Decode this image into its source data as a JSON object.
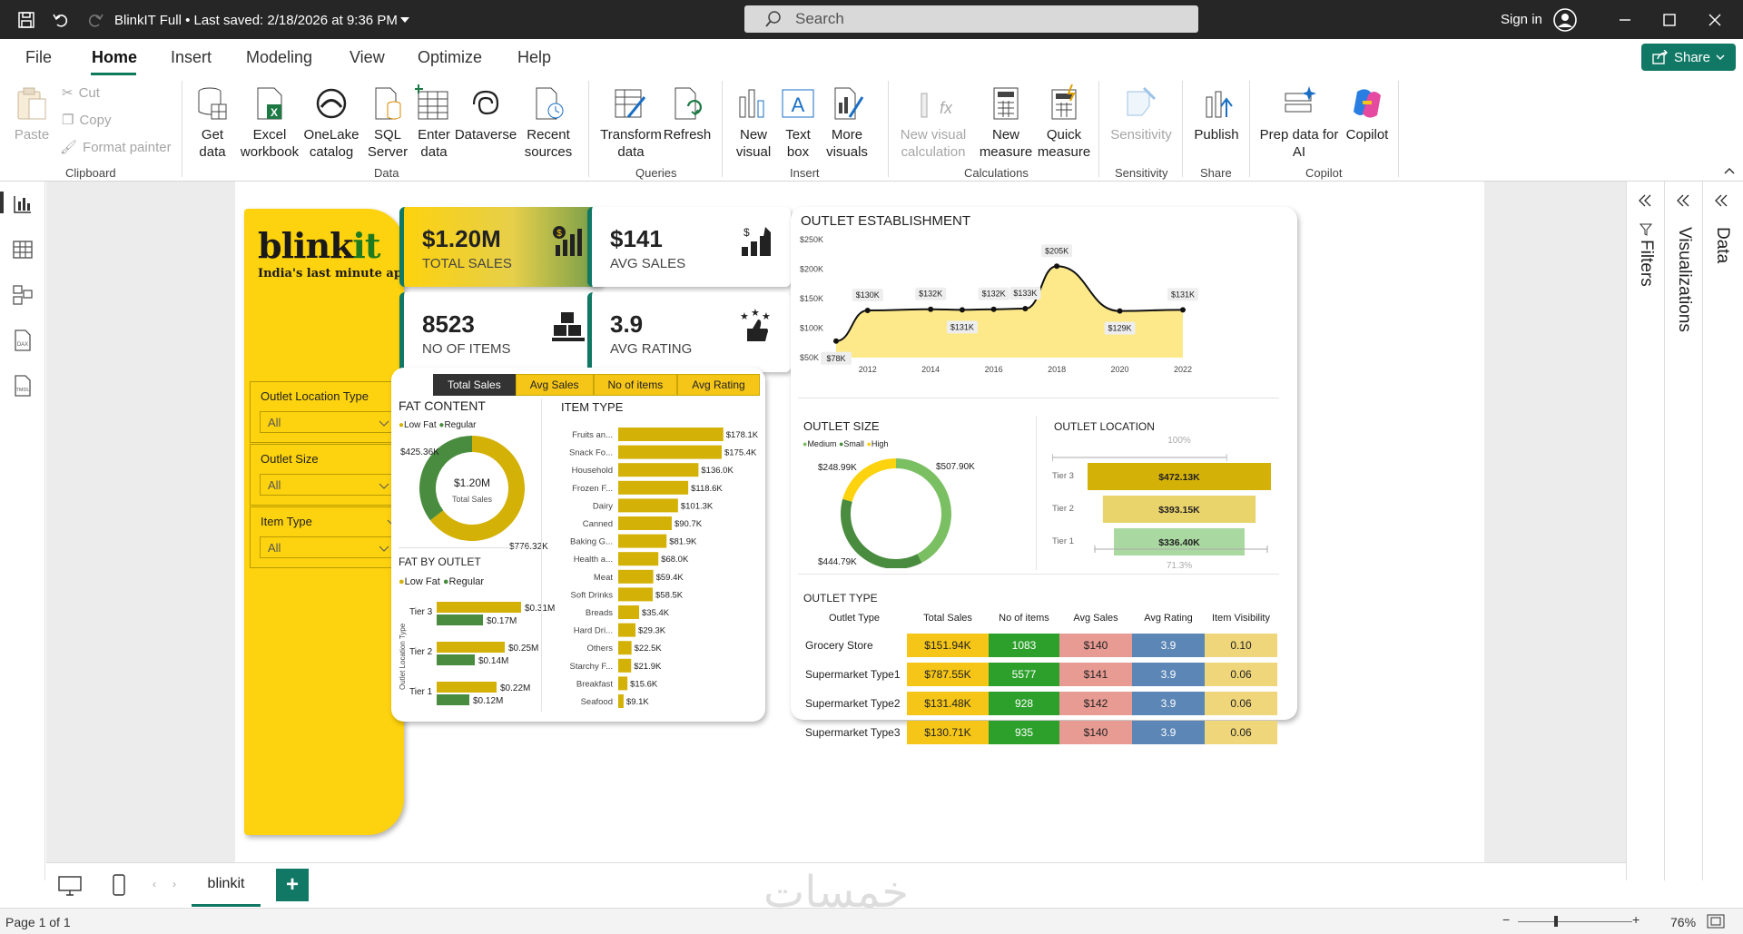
{
  "titlebar": {
    "doc_title": "BlinkIT Full  •  Last saved: 2/18/2026 at 9:36 PM",
    "search_placeholder": "Search",
    "signin": "Sign in"
  },
  "menu": {
    "tabs": [
      "File",
      "Home",
      "Insert",
      "Modeling",
      "View",
      "Optimize",
      "Help"
    ],
    "share": "Share"
  },
  "ribbon": {
    "clipboard": {
      "paste": "Paste",
      "cut": "Cut",
      "copy": "Copy",
      "format_painter": "Format painter",
      "group": "Clipboard"
    },
    "data": {
      "get_data": "Get data",
      "excel": "Excel workbook",
      "onelake": "OneLake catalog",
      "sql": "SQL Server",
      "enter": "Enter data",
      "dataverse": "Dataverse",
      "recent": "Recent sources",
      "group": "Data"
    },
    "queries": {
      "transform": "Transform data",
      "refresh": "Refresh",
      "group": "Queries"
    },
    "insert": {
      "new_visual": "New visual",
      "text_box": "Text box",
      "more": "More visuals",
      "group": "Insert"
    },
    "calc": {
      "new_calc": "New visual calculation",
      "new_measure": "New measure",
      "quick": "Quick measure",
      "group": "Calculations"
    },
    "sensitivity": {
      "label": "Sensitivity",
      "group": "Sensitivity"
    },
    "share": {
      "publish": "Publish",
      "group": "Share"
    },
    "copilot": {
      "prep": "Prep data for AI",
      "copilot": "Copilot",
      "group": "Copilot"
    }
  },
  "sidepanes": {
    "filters": "Filters",
    "visualizations": "Visualizations",
    "data": "Data"
  },
  "report": {
    "brand": {
      "name_black": "blink",
      "name_green": "it",
      "tagline": "India's last minute app"
    },
    "slicers": [
      {
        "title": "Outlet Location Type",
        "value": "All"
      },
      {
        "title": "Outlet Size",
        "value": "All"
      },
      {
        "title": "Item Type",
        "value": "All"
      }
    ],
    "kpis": [
      {
        "value": "$1.20M",
        "label": "TOTAL SALES"
      },
      {
        "value": "$141",
        "label": "AVG SALES"
      },
      {
        "value": "8523",
        "label": "NO OF ITEMS"
      },
      {
        "value": "3.9",
        "label": "AVG RATING"
      }
    ],
    "measure_tabs": [
      "Total Sales",
      "Avg Sales",
      "No of items",
      "Avg Rating"
    ],
    "fat_content": {
      "title": "FAT CONTENT",
      "legend": [
        "Low Fat",
        "Regular"
      ],
      "center_value": "$1.20M",
      "center_label": "Total Sales"
    },
    "fat_by_outlet": {
      "title": "FAT BY OUTLET",
      "legend": [
        "Low Fat",
        "Regular"
      ],
      "axis_label": "Outlet Location Type"
    },
    "item_type": {
      "title": "ITEM TYPE"
    },
    "outlet_establishment": {
      "title": "OUTLET ESTABLISHMENT"
    },
    "outlet_size": {
      "title": "OUTLET SIZE",
      "legend": [
        "Medium",
        "Small",
        "High"
      ]
    },
    "outlet_location": {
      "title": "OUTLET LOCATION",
      "top_pct": "100%",
      "bottom_pct": "71.3%"
    },
    "outlet_type": {
      "title": "OUTLET TYPE",
      "columns": [
        "Outlet Type",
        "Total Sales",
        "No of items",
        "Avg Sales",
        "Avg Rating",
        "Item Visibility"
      ],
      "rows": [
        [
          "Grocery Store",
          "$151.94K",
          "1083",
          "$140",
          "3.9",
          "0.10"
        ],
        [
          "Supermarket Type1",
          "$787.55K",
          "5577",
          "$141",
          "3.9",
          "0.06"
        ],
        [
          "Supermarket Type2",
          "$131.48K",
          "928",
          "$142",
          "3.9",
          "0.06"
        ],
        [
          "Supermarket Type3",
          "$130.71K",
          "935",
          "$140",
          "3.9",
          "0.06"
        ]
      ]
    }
  },
  "pagebar": {
    "page_tab": "blinkit",
    "watermark": "خمسات"
  },
  "statusbar": {
    "page": "Page 1 of 1",
    "zoom": "76%"
  },
  "colors": {
    "gold": "#d4b106",
    "yellow": "#fdd20e",
    "green": "#117865",
    "darkgreen": "#4a8c3f",
    "lightgreen": "#7bbf63"
  },
  "chart_data": [
    {
      "type": "donut",
      "title": "FAT CONTENT",
      "categories": [
        "Low Fat",
        "Regular"
      ],
      "values": [
        776.32,
        425.36
      ],
      "labels": [
        "$776.32K",
        "$425.36K"
      ],
      "unit": "$K"
    },
    {
      "type": "bar",
      "title": "FAT BY OUTLET",
      "categories": [
        "Tier 3",
        "Tier 2",
        "Tier 1"
      ],
      "series": [
        {
          "name": "Low Fat",
          "values": [
            0.31,
            0.25,
            0.22
          ],
          "labels": [
            "$0.31M",
            "$0.25M",
            "$0.22M"
          ]
        },
        {
          "name": "Regular",
          "values": [
            0.17,
            0.14,
            0.12
          ],
          "labels": [
            "$0.17M",
            "$0.14M",
            "$0.12M"
          ]
        }
      ],
      "unit": "$M"
    },
    {
      "type": "bar",
      "title": "ITEM TYPE",
      "categories": [
        "Fruits an...",
        "Snack Fo...",
        "Household",
        "Frozen F...",
        "Dairy",
        "Canned",
        "Baking G...",
        "Health a...",
        "Meat",
        "Soft Drinks",
        "Breads",
        "Hard Dri...",
        "Others",
        "Starchy F...",
        "Breakfast",
        "Seafood"
      ],
      "values": [
        178.1,
        175.4,
        136.0,
        118.6,
        101.3,
        90.7,
        81.9,
        68.0,
        59.4,
        58.5,
        35.4,
        29.3,
        22.5,
        21.9,
        15.6,
        9.1
      ],
      "labels": [
        "$178.1K",
        "$175.4K",
        "$136.0K",
        "$118.6K",
        "$101.3K",
        "$90.7K",
        "$81.9K",
        "$68.0K",
        "$59.4K",
        "$58.5K",
        "$35.4K",
        "$29.3K",
        "$22.5K",
        "$21.9K",
        "$15.6K",
        "$9.1K"
      ],
      "unit": "$K"
    },
    {
      "type": "area",
      "title": "OUTLET ESTABLISHMENT",
      "x": [
        2011,
        2012,
        2014,
        2015,
        2016,
        2017,
        2018,
        2020,
        2022
      ],
      "values": [
        78,
        130,
        132,
        131,
        132,
        133,
        205,
        129,
        131
      ],
      "labels": [
        "$78K",
        "$130K",
        "$132K",
        "$131K",
        "$132K",
        "$133K",
        "$205K",
        "$129K",
        "$131K"
      ],
      "xticks": [
        "2012",
        "2014",
        "2016",
        "2018",
        "2020",
        "2022"
      ],
      "yticks": [
        "$50K",
        "$100K",
        "$150K",
        "$200K",
        "$250K"
      ],
      "ylim": [
        50,
        250
      ],
      "unit": "$K"
    },
    {
      "type": "donut",
      "title": "OUTLET SIZE",
      "categories": [
        "Medium",
        "Small",
        "High"
      ],
      "values": [
        507.9,
        444.79,
        248.99
      ],
      "labels": [
        "$507.90K",
        "$444.79K",
        "$248.99K"
      ],
      "unit": "$K"
    },
    {
      "type": "funnel",
      "title": "OUTLET LOCATION",
      "categories": [
        "Tier 3",
        "Tier 2",
        "Tier 1"
      ],
      "values": [
        472.13,
        393.15,
        336.4
      ],
      "labels": [
        "$472.13K",
        "$393.15K",
        "$336.40K"
      ],
      "unit": "$K"
    }
  ]
}
